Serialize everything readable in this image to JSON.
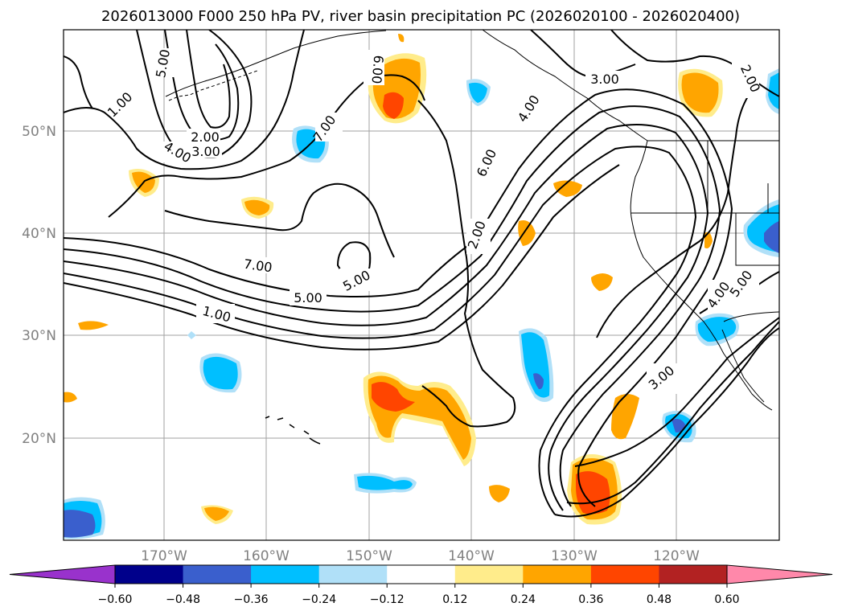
{
  "title": "2026013000 F000 250 hPa PV, river basin precipitation PC (2026020100 - 2026020400)",
  "map": {
    "lat_labels": [
      "50°N",
      "40°N",
      "30°N",
      "20°N"
    ],
    "lon_labels": [
      "170°W",
      "160°W",
      "150°W",
      "140°W",
      "130°W",
      "120°W"
    ],
    "gridlines": true
  },
  "pv_contour_labels": [
    {
      "id": "c1",
      "text": "5.00"
    },
    {
      "id": "c2",
      "text": "1.00"
    },
    {
      "id": "c3",
      "text": "2.00"
    },
    {
      "id": "c4",
      "text": "3.00"
    },
    {
      "id": "c5",
      "text": "4.00"
    },
    {
      "id": "c6",
      "text": "6.00"
    },
    {
      "id": "c7",
      "text": "7.00"
    },
    {
      "id": "c8",
      "text": "6.00"
    },
    {
      "id": "c9",
      "text": "4.00"
    },
    {
      "id": "c10",
      "text": "3.00"
    },
    {
      "id": "c11",
      "text": "2.00"
    },
    {
      "id": "c12",
      "text": "2.00"
    },
    {
      "id": "c13",
      "text": "7.00"
    },
    {
      "id": "c14",
      "text": "5.00"
    },
    {
      "id": "c15",
      "text": "5.00"
    },
    {
      "id": "c16",
      "text": "1.00"
    },
    {
      "id": "c17",
      "text": "4.00"
    },
    {
      "id": "c18",
      "text": "5.00"
    },
    {
      "id": "c19",
      "text": "3.00"
    }
  ],
  "colorbar": {
    "ticks": [
      "−0.60",
      "−0.48",
      "−0.36",
      "−0.24",
      "−0.12",
      "0.12",
      "0.24",
      "0.36",
      "0.48",
      "0.60"
    ],
    "colors": [
      "#9932cc",
      "#00008b",
      "#3a5fcd",
      "#00bfff",
      "#b0e0f8",
      "#ffffff",
      "#ffec8b",
      "#ffa500",
      "#ff4500",
      "#b22222",
      "#ff88aa"
    ]
  },
  "fill_colors": {
    "lightblue": "#b0e0f8",
    "blue": "#00bfff",
    "royal": "#3a5fcd",
    "yellow": "#ffec8b",
    "orange": "#ffa500",
    "red": "#ff4500"
  }
}
